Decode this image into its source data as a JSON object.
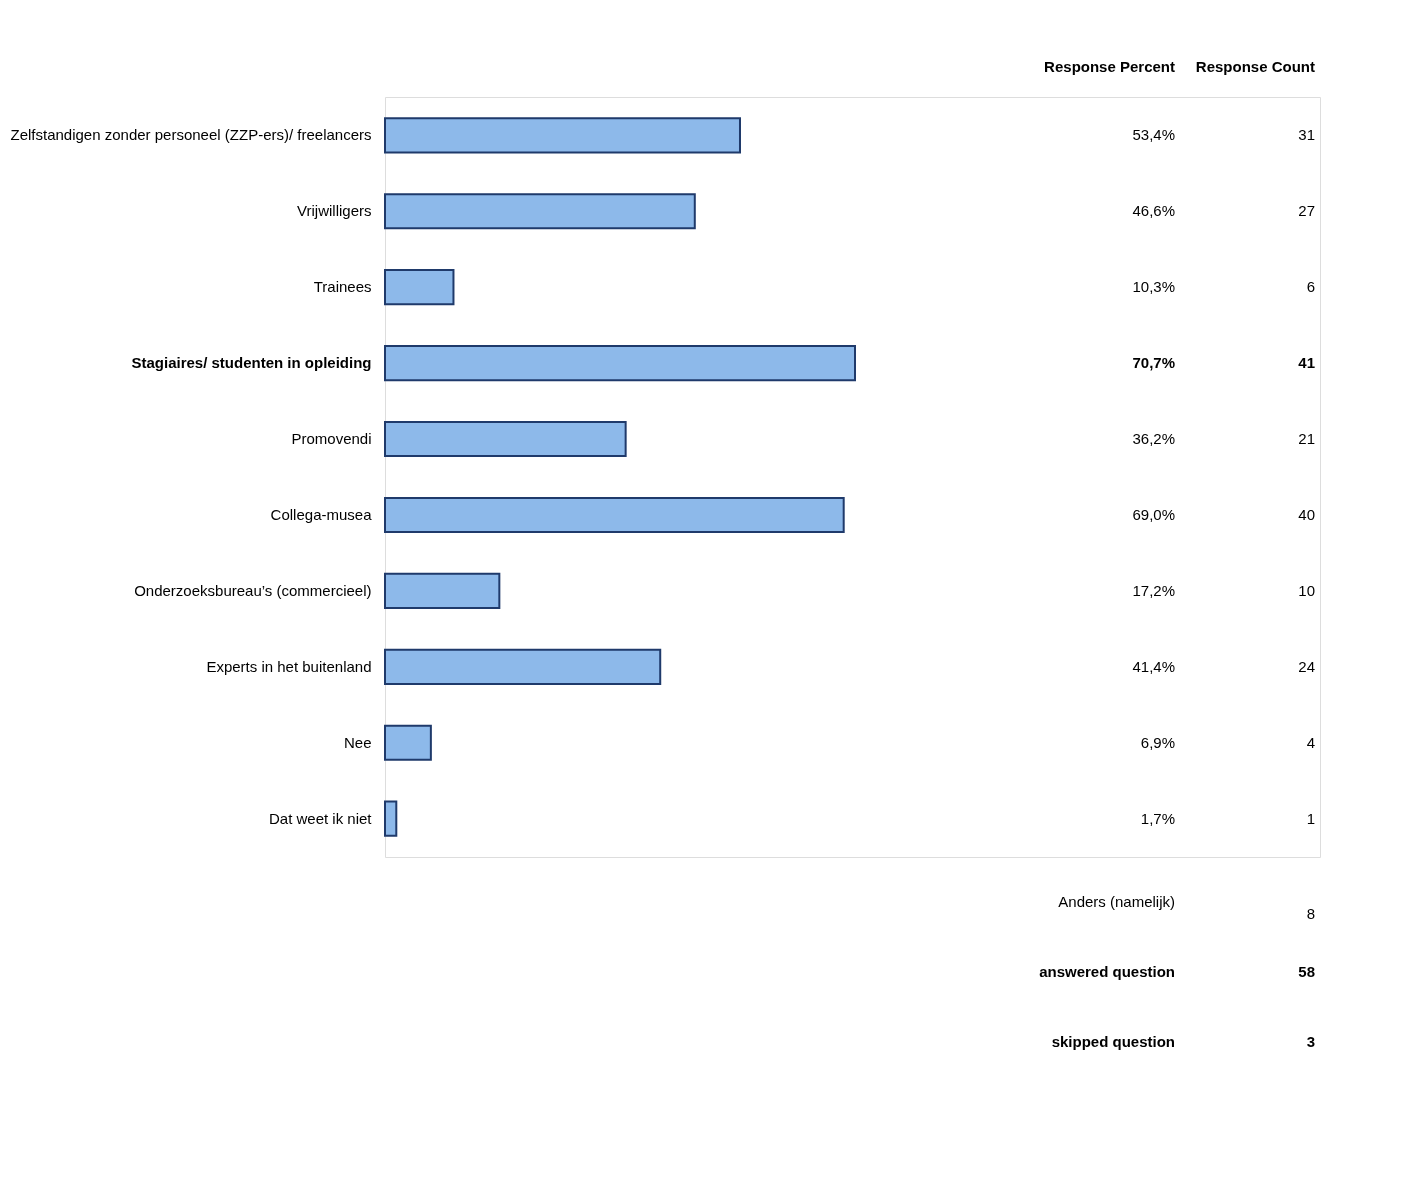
{
  "chart_data": {
    "type": "bar",
    "orientation": "horizontal",
    "categories": [
      "Zelfstandigen zonder personeel (ZZP-ers)/ freelancers",
      "Vrijwilligers",
      "Trainees",
      "Stagiaires/ studenten in opleiding",
      "Promovendi",
      "Collega-musea",
      "Onderzoeksbureau’s (commercieel)",
      "Experts in het buitenland",
      "Nee",
      "Dat weet ik niet"
    ],
    "series": [
      {
        "name": "Response Percent",
        "color": "#8db9ea",
        "values": [
          53.4,
          46.6,
          10.3,
          70.7,
          36.2,
          69.0,
          17.2,
          41.4,
          6.9,
          1.7
        ],
        "value_labels": [
          "53,4%",
          "46,6%",
          "10,3%",
          "70,7%",
          "36,2%",
          "69,0%",
          "17,2%",
          "41,4%",
          "6,9%",
          "1,7%"
        ]
      }
    ],
    "annotations": [
      "Response Count",
      "31",
      "27",
      "6",
      "41",
      "21",
      "40",
      "10",
      "24",
      "4",
      "1",
      "Anders (namelijk)",
      "8",
      "answered question",
      "58",
      "skipped question",
      "3"
    ],
    "grid": false
  }
}
